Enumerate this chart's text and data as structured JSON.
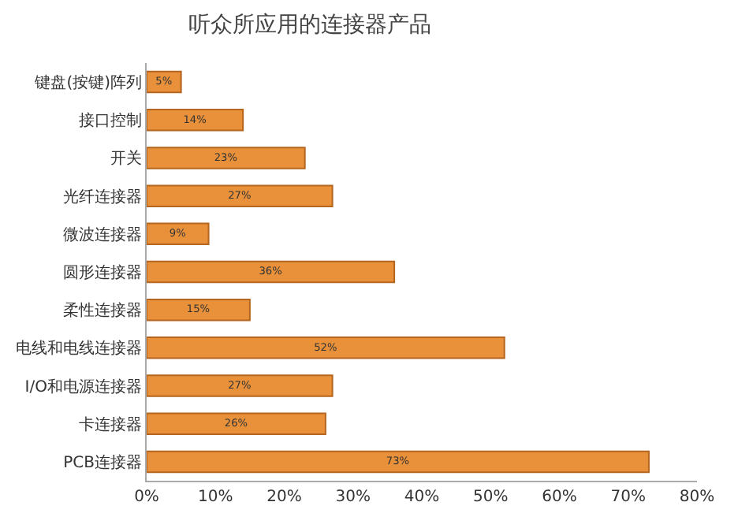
{
  "chart_data": {
    "type": "bar",
    "orientation": "horizontal",
    "title": "听众所应用的连接器产品",
    "categories": [
      "键盘(按键)阵列",
      "接口控制",
      "开关",
      "光纤连接器",
      "微波连接器",
      "圆形连接器",
      "柔性连接器",
      "电线和电线连接器",
      "I/O和电源连接器",
      "卡连接器",
      "PCB连接器"
    ],
    "values": [
      5,
      14,
      23,
      27,
      9,
      36,
      15,
      52,
      27,
      26,
      73
    ],
    "value_labels": [
      "5%",
      "14%",
      "23%",
      "27%",
      "9%",
      "36%",
      "15%",
      "52%",
      "27%",
      "26%",
      "73%"
    ],
    "color": "#e8913a",
    "xlim": [
      0,
      80
    ],
    "xticks": [
      {
        "value": 0,
        "label": "0%"
      },
      {
        "value": 10,
        "label": "10%"
      },
      {
        "value": 20,
        "label": "20%"
      },
      {
        "value": 30,
        "label": "30%"
      },
      {
        "value": 40,
        "label": "40%"
      },
      {
        "value": 50,
        "label": "50%"
      },
      {
        "value": 60,
        "label": "60%"
      },
      {
        "value": 70,
        "label": "70%"
      },
      {
        "value": 80,
        "label": "80%"
      }
    ],
    "data_labels": false
  }
}
